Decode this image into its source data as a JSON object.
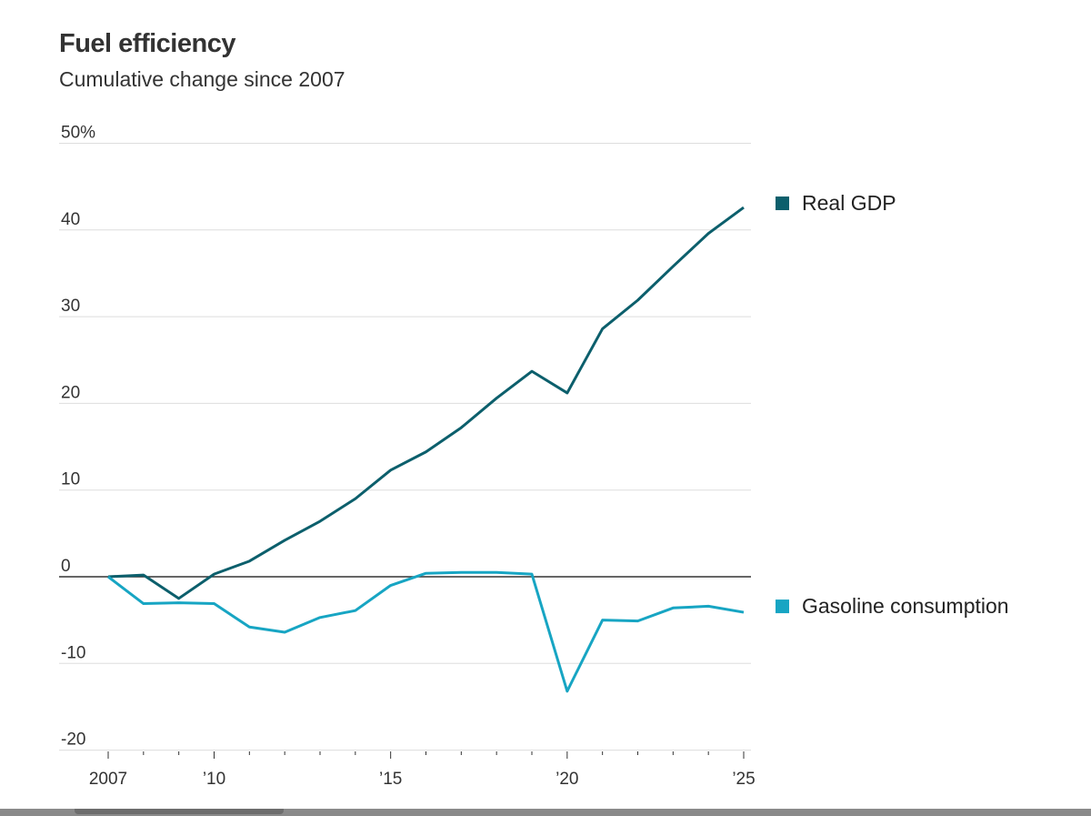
{
  "chart_data": {
    "type": "line",
    "title": "Fuel efficiency",
    "subtitle": "Cumulative change since 2007",
    "x": [
      2007,
      2008,
      2009,
      2010,
      2011,
      2012,
      2013,
      2014,
      2015,
      2016,
      2017,
      2018,
      2019,
      2020,
      2021,
      2022,
      2023,
      2024,
      2025
    ],
    "x_ticks": [
      2007,
      2010,
      2015,
      2020,
      2025
    ],
    "x_tick_labels": [
      "2007",
      "’10",
      "’15",
      "’20",
      "’25"
    ],
    "y_ticks": [
      50,
      40,
      30,
      20,
      10,
      0,
      -10,
      -20
    ],
    "y_tick_labels": [
      "50%",
      "40",
      "30",
      "20",
      "10",
      "0",
      "-10",
      "-20"
    ],
    "ylim": [
      -20,
      50
    ],
    "xlim": [
      2007,
      2025
    ],
    "grid": true,
    "legend_placement": "right, at line ends",
    "series": [
      {
        "name": "Real GDP",
        "color": "#0c5f6c",
        "values": [
          0,
          0.2,
          -2.5,
          0.3,
          1.8,
          4.2,
          6.4,
          9.0,
          12.3,
          14.4,
          17.2,
          20.6,
          23.7,
          21.2,
          28.6,
          31.9,
          35.8,
          39.6,
          42.6
        ]
      },
      {
        "name": "Gasoline consumption",
        "color": "#17a5c3",
        "values": [
          0,
          -3.1,
          -3.0,
          -3.1,
          -5.8,
          -6.4,
          -4.7,
          -3.9,
          -1.0,
          0.4,
          0.5,
          0.5,
          0.3,
          -13.2,
          -5.0,
          -5.1,
          -3.6,
          -3.4,
          -4.1
        ]
      }
    ]
  }
}
